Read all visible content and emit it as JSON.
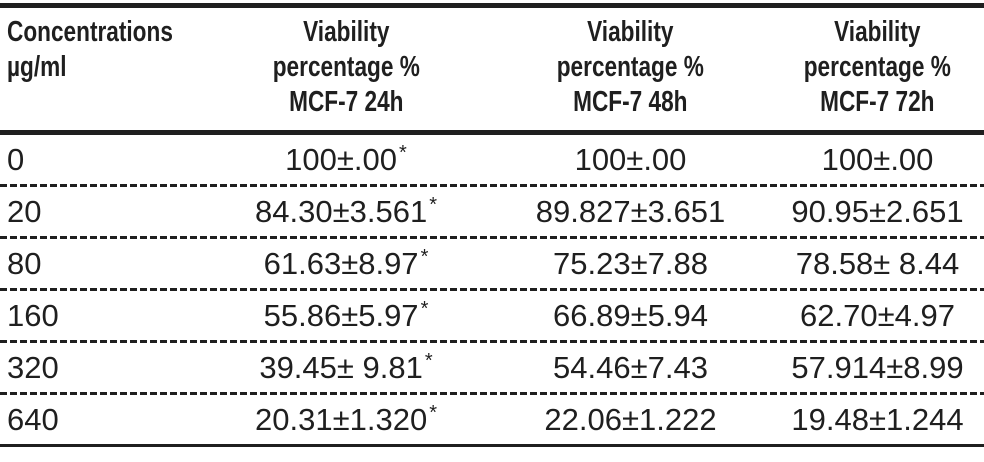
{
  "colors": {
    "ink": "#1f1f1f",
    "background": "#ffffff"
  },
  "table": {
    "headers": [
      "Concentrations\nµg/ml",
      "Viability\npercentage %\nMCF-7 24h",
      "Viability\npercentage %\nMCF-7 48h",
      "Viability\npercentage %\nMCF-7 72h"
    ],
    "rows": [
      [
        "0",
        "100±.00*",
        "100±.00",
        "100±.00"
      ],
      [
        "20",
        "84.30±3.561*",
        "89.827±3.651",
        "90.95±2.651"
      ],
      [
        "80",
        "61.63±8.97*",
        "75.23±7.88",
        "78.58± 8.44"
      ],
      [
        "160",
        "55.86±5.97*",
        "66.89±5.94",
        "62.70±4.97"
      ],
      [
        "320",
        "39.45± 9.81*",
        "54.46±7.43",
        "57.914±8.99"
      ],
      [
        "640",
        "20.31±1.320*",
        "22.06±1.222",
        "19.48±1.244"
      ]
    ],
    "significance_marker": "*"
  },
  "chart_data": {
    "type": "table",
    "title": "",
    "categories": [
      0,
      20,
      80,
      160,
      320,
      640
    ],
    "xlabel": "Concentrations µg/ml",
    "series": [
      {
        "name": "Viability percentage % MCF-7 24h",
        "values": [
          100,
          84.3,
          61.63,
          55.86,
          39.45,
          20.31
        ],
        "sd": [
          0.0,
          3.561,
          8.97,
          5.97,
          9.81,
          1.32
        ],
        "significant": true
      },
      {
        "name": "Viability percentage % MCF-7 48h",
        "values": [
          100,
          89.827,
          75.23,
          66.89,
          54.46,
          22.06
        ],
        "sd": [
          0.0,
          3.651,
          7.88,
          5.94,
          7.43,
          1.222
        ],
        "significant": false
      },
      {
        "name": "Viability percentage % MCF-7 72h",
        "values": [
          100,
          90.95,
          78.58,
          62.7,
          57.914,
          19.48
        ],
        "sd": [
          0.0,
          2.651,
          8.44,
          4.97,
          8.99,
          1.244
        ],
        "significant": false
      }
    ]
  }
}
